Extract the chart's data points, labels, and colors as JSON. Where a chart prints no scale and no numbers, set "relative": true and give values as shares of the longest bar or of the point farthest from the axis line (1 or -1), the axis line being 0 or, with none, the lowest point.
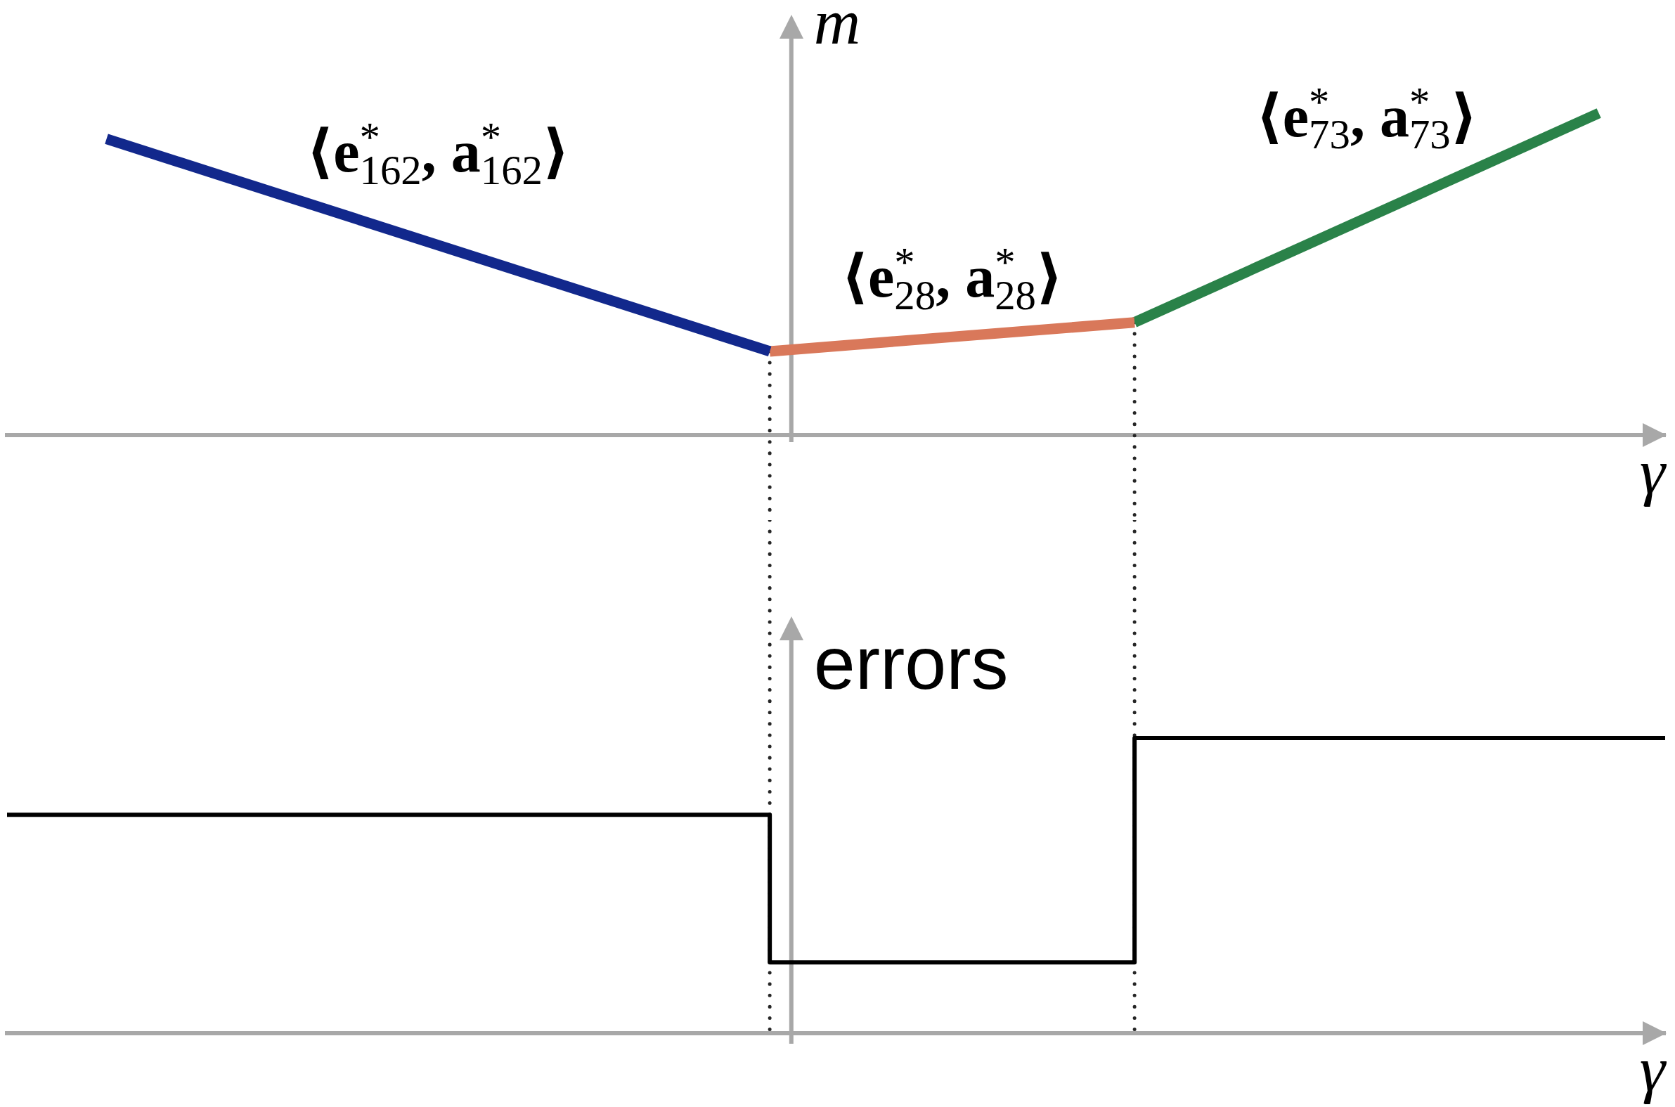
{
  "chart_data": [
    {
      "type": "line",
      "relative": true,
      "ylabel": "m",
      "xlabel": "γ",
      "categories": [
        null,
        null,
        null,
        null,
        null,
        null,
        null,
        null,
        null,
        null,
        null,
        null,
        null,
        null,
        null,
        null,
        null,
        null,
        null,
        null,
        null,
        null,
        null,
        null,
        null,
        null,
        null,
        null,
        null,
        null,
        null,
        null,
        null,
        null,
        null,
        null,
        null,
        null,
        null,
        null,
        null,
        null,
        null,
        null,
        null,
        null,
        null,
        null,
        null,
        null,
        null
      ],
      "series": [
        {
          "name": "⟨e$^{*}$$_{162}$, a$^{*}$$_{162}$⟩",
          "color": "#12288c",
          "values": [
            null,
            null,
            null,
            0.92,
            null,
            null,
            null,
            null,
            null,
            null,
            null,
            null,
            null,
            null,
            null,
            null,
            null,
            null,
            null,
            null,
            null,
            null,
            null,
            0.26,
            null,
            null,
            null,
            null,
            null,
            null,
            null,
            null,
            null,
            null,
            null,
            null,
            null,
            null,
            null,
            null,
            null,
            null,
            null,
            null,
            null,
            null,
            null,
            null,
            null,
            null,
            null
          ]
        },
        {
          "name": "⟨e$^{*}$$_{28}$, a$^{*}$$_{28}$⟩",
          "color": "#d9785a",
          "values": [
            null,
            null,
            null,
            null,
            null,
            null,
            null,
            null,
            null,
            null,
            null,
            null,
            null,
            null,
            null,
            null,
            null,
            null,
            null,
            null,
            null,
            null,
            null,
            0.26,
            null,
            null,
            null,
            null,
            null,
            null,
            null,
            null,
            null,
            null,
            0.35,
            null,
            null,
            null,
            null,
            null,
            null,
            null,
            null,
            null,
            null,
            null,
            null,
            null,
            null,
            null,
            null
          ]
        },
        {
          "name": "⟨e$^{*}$$_{73}$, a$^{*}$$_{73}$⟩",
          "color": "#2a8249",
          "values": [
            null,
            null,
            null,
            null,
            null,
            null,
            null,
            null,
            null,
            null,
            null,
            null,
            null,
            null,
            null,
            null,
            null,
            null,
            null,
            null,
            null,
            null,
            null,
            null,
            null,
            null,
            null,
            null,
            null,
            null,
            null,
            null,
            null,
            null,
            0.35,
            null,
            null,
            null,
            null,
            null,
            null,
            null,
            null,
            null,
            null,
            null,
            null,
            null,
            1,
            null,
            null
          ]
        }
      ]
    },
    {
      "type": "step",
      "relative": true,
      "ylabel": "errors",
      "xlabel": "γ",
      "categories": [
        null,
        null,
        null,
        null,
        null,
        null,
        null,
        null,
        null,
        null,
        null,
        null,
        null,
        null,
        null,
        null,
        null,
        null,
        null,
        null,
        null,
        null,
        null,
        null,
        null,
        null,
        null,
        null,
        null,
        null,
        null,
        null,
        null,
        null,
        null,
        null,
        null,
        null,
        null,
        null,
        null,
        null,
        null,
        null,
        null,
        null,
        null,
        null,
        null,
        null,
        null
      ],
      "series": [
        {
          "color": "#000000",
          "values": [
            0.74,
            0.74,
            0.74,
            0.74,
            0.74,
            0.74,
            0.74,
            0.74,
            0.74,
            0.74,
            0.74,
            0.74,
            0.74,
            0.74,
            0.74,
            0.74,
            0.74,
            0.74,
            0.74,
            0.74,
            0.74,
            0.74,
            0.74,
            0.24,
            0.24,
            0.24,
            0.24,
            0.24,
            0.24,
            0.24,
            0.24,
            0.24,
            0.24,
            0.24,
            1,
            1,
            1,
            1,
            1,
            1,
            1,
            1,
            1,
            1,
            1,
            1,
            1,
            1,
            1,
            1,
            1
          ]
        }
      ]
    }
  ]
}
